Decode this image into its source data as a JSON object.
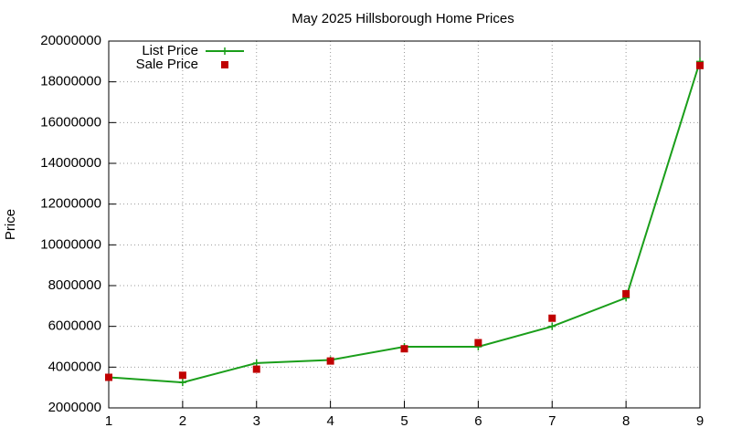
{
  "chart_data": {
    "type": "line",
    "title": "May 2025 Hillsborough Home Prices",
    "y_label": "Price",
    "x": [
      1,
      2,
      3,
      4,
      5,
      6,
      7,
      8,
      9
    ],
    "series": [
      {
        "name": "List Price",
        "color": "#1a9e1a",
        "style": "linespoints",
        "values": [
          3500000,
          3250000,
          4200000,
          4350000,
          5000000,
          5000000,
          6000000,
          7400000,
          19000000
        ]
      },
      {
        "name": "Sale Price",
        "color": "#c00000",
        "style": "points",
        "values": [
          3500000,
          3600000,
          3900000,
          4300000,
          4900000,
          5200000,
          6400000,
          7600000,
          18800000
        ]
      }
    ],
    "xlim": [
      1,
      9
    ],
    "xticks": [
      1,
      2,
      3,
      4,
      5,
      6,
      7,
      8,
      9
    ],
    "ylim": [
      2000000,
      20000000
    ],
    "yticks": [
      2000000,
      4000000,
      6000000,
      8000000,
      10000000,
      12000000,
      14000000,
      16000000,
      18000000,
      20000000
    ],
    "grid": true,
    "legend": "top-left"
  }
}
